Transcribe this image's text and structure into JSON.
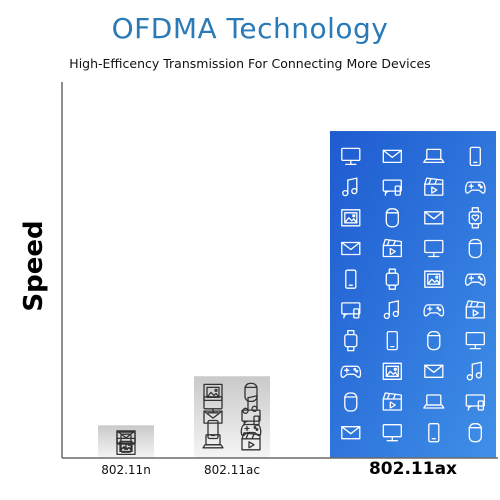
{
  "chart_data": {
    "type": "bar",
    "title": "OFDMA Technology",
    "subtitle": "High-Efficency Transmission For Connecting More Devices",
    "ylabel": "Speed",
    "xlabel": "",
    "categories": [
      "802.11n",
      "802.11ac",
      "802.11ax"
    ],
    "values": [
      4,
      10,
      40
    ],
    "ylim": [
      0,
      46
    ],
    "grid": false,
    "legend": "none",
    "colors": {
      "gray_bar_top": "#c9c9c9",
      "gray_bar_bottom": "#f5f5f5",
      "blue_bar_top": "#1e5bd0",
      "blue_bar_bottom": "#3f8fe8",
      "axis": "#6a6a6a",
      "title": "#2a7ab8"
    },
    "device_icons": {
      "802.11n": [
        "envelope-icon",
        "monitor-icon",
        "phone-icon",
        "photo-icon"
      ],
      "802.11ac": [
        "photo-icon",
        "speaker-icon",
        "monitor-icon",
        "music-icon",
        "envelope-icon",
        "cast-icon",
        "phone-icon",
        "gamepad-icon",
        "laptop-icon",
        "clapper-icon"
      ],
      "802.11ax": [
        "monitor-icon",
        "envelope-icon",
        "laptop-icon",
        "phone-icon",
        "music-icon",
        "cast-icon",
        "clapper-icon",
        "gamepad-icon",
        "photo-icon",
        "speaker-icon",
        "envelope-icon",
        "heart-watch-icon",
        "envelope-icon",
        "clapper-icon",
        "monitor-icon",
        "speaker-icon",
        "phone-icon",
        "watch-icon",
        "photo-icon",
        "gamepad-icon",
        "cast-icon",
        "music-icon",
        "gamepad-icon",
        "clapper-icon",
        "watch-icon",
        "phone-icon",
        "speaker-icon",
        "monitor-icon",
        "gamepad-icon",
        "photo-icon",
        "envelope-icon",
        "music-icon",
        "speaker-icon",
        "clapper-icon",
        "laptop-icon",
        "cast-icon",
        "envelope-icon",
        "monitor-icon",
        "phone-icon",
        "speaker-icon"
      ]
    }
  }
}
